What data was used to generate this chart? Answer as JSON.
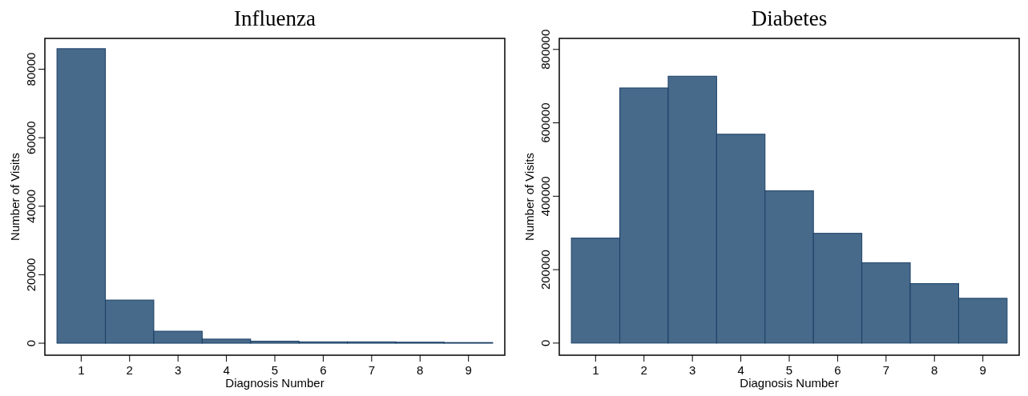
{
  "chart_data": [
    {
      "type": "histogram",
      "title": "Influenza",
      "xlabel": "Diagnosis Number",
      "ylabel": "Number of Visits",
      "bins": [
        0.5,
        1.5,
        2.5,
        3.5,
        4.5,
        5.5,
        6.5,
        7.5,
        8.5,
        9.5
      ],
      "values": [
        86000,
        12600,
        3500,
        1200,
        600,
        400,
        400,
        300,
        200
      ],
      "color": "#476a8a",
      "xlim": [
        0.25,
        9.75
      ],
      "xticks": [
        1,
        2,
        3,
        4,
        5,
        6,
        7,
        8,
        9
      ],
      "ylim": [
        -3500,
        89000
      ],
      "yticks": [
        0,
        20000,
        40000,
        60000,
        80000
      ],
      "grid": false
    },
    {
      "type": "histogram",
      "title": "Diabetes",
      "xlabel": "Diagnosis Number",
      "ylabel": "Number of Visits",
      "bins": [
        0.5,
        1.5,
        2.5,
        3.5,
        4.5,
        5.5,
        6.5,
        7.5,
        8.5,
        9.5
      ],
      "values": [
        286000,
        695000,
        727000,
        569000,
        415000,
        299000,
        219000,
        162000,
        122000
      ],
      "color": "#476a8a",
      "xlim": [
        0.25,
        9.75
      ],
      "xticks": [
        1,
        2,
        3,
        4,
        5,
        6,
        7,
        8,
        9
      ],
      "ylim": [
        -33000,
        830000
      ],
      "yticks": [
        0,
        200000,
        400000,
        600000,
        800000
      ],
      "grid": false
    }
  ]
}
